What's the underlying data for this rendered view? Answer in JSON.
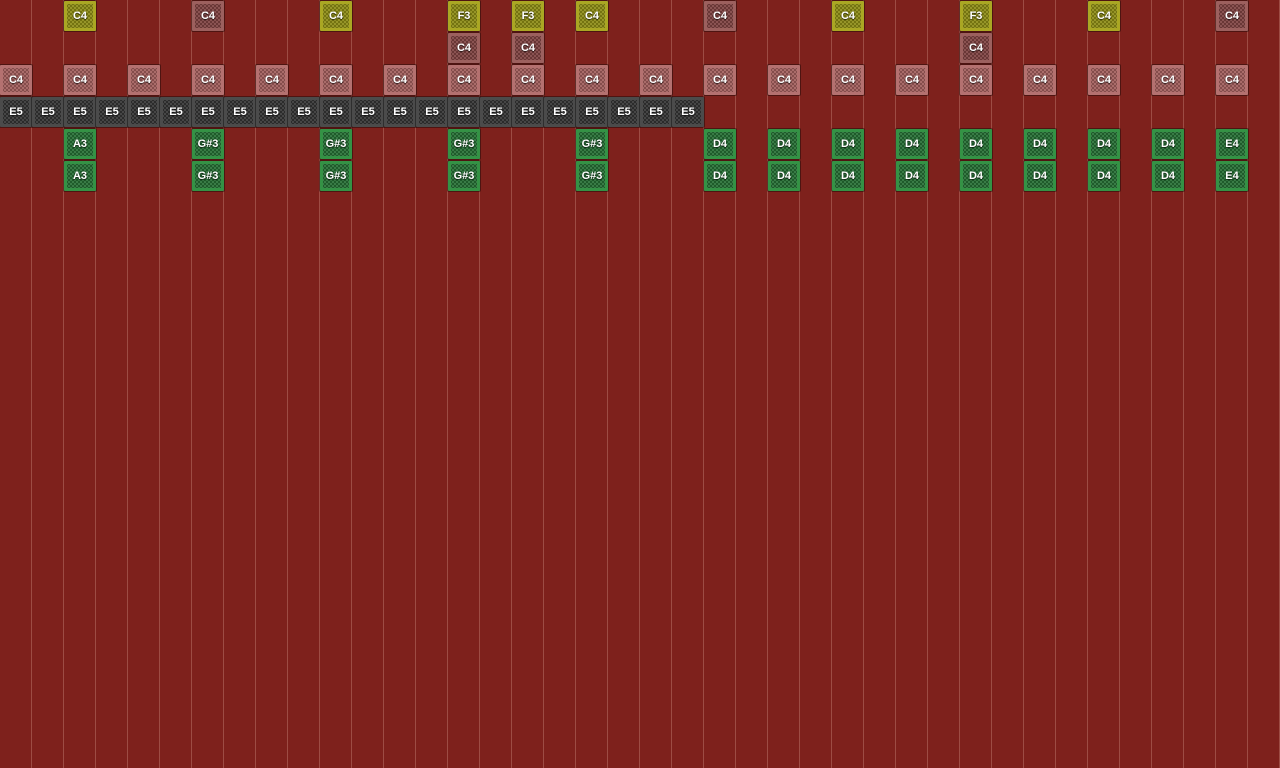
{
  "app": {
    "name": "note-block-sequencer-workspace"
  },
  "grid": {
    "columns": 40,
    "rows": 24,
    "cell_size": 32,
    "background": "#7e211c",
    "gridline_color": "#9d4c44"
  },
  "note_colors": {
    "yellow": {
      "edge": "#aaa723",
      "base": "#8c8a14"
    },
    "rose_dark": {
      "edge": "#9c605e",
      "base": "#7e4241"
    },
    "rose_light": {
      "edge": "#b47170",
      "base": "#a05d5b"
    },
    "gray": {
      "edge": "#4b4b4b",
      "base": "#343434"
    },
    "green": {
      "edge": "#349245",
      "base": "#256e34"
    }
  },
  "notes": [
    {
      "row": 0,
      "col": 2,
      "label": "C4",
      "color": "yellow"
    },
    {
      "row": 0,
      "col": 6,
      "label": "C4",
      "color": "rose_dark"
    },
    {
      "row": 0,
      "col": 10,
      "label": "C4",
      "color": "yellow"
    },
    {
      "row": 0,
      "col": 14,
      "label": "F3",
      "color": "yellow"
    },
    {
      "row": 0,
      "col": 16,
      "label": "F3",
      "color": "yellow"
    },
    {
      "row": 0,
      "col": 18,
      "label": "C4",
      "color": "yellow"
    },
    {
      "row": 0,
      "col": 22,
      "label": "C4",
      "color": "rose_dark"
    },
    {
      "row": 0,
      "col": 26,
      "label": "C4",
      "color": "yellow"
    },
    {
      "row": 0,
      "col": 30,
      "label": "F3",
      "color": "yellow"
    },
    {
      "row": 0,
      "col": 34,
      "label": "C4",
      "color": "yellow"
    },
    {
      "row": 0,
      "col": 38,
      "label": "C4",
      "color": "rose_dark"
    },
    {
      "row": 1,
      "col": 14,
      "label": "C4",
      "color": "rose_dark"
    },
    {
      "row": 1,
      "col": 16,
      "label": "C4",
      "color": "rose_dark"
    },
    {
      "row": 1,
      "col": 30,
      "label": "C4",
      "color": "rose_dark"
    },
    {
      "row": 2,
      "col": 0,
      "label": "C4",
      "color": "rose_light"
    },
    {
      "row": 2,
      "col": 2,
      "label": "C4",
      "color": "rose_light"
    },
    {
      "row": 2,
      "col": 4,
      "label": "C4",
      "color": "rose_light"
    },
    {
      "row": 2,
      "col": 6,
      "label": "C4",
      "color": "rose_light"
    },
    {
      "row": 2,
      "col": 8,
      "label": "C4",
      "color": "rose_light"
    },
    {
      "row": 2,
      "col": 10,
      "label": "C4",
      "color": "rose_light"
    },
    {
      "row": 2,
      "col": 12,
      "label": "C4",
      "color": "rose_light"
    },
    {
      "row": 2,
      "col": 14,
      "label": "C4",
      "color": "rose_light"
    },
    {
      "row": 2,
      "col": 16,
      "label": "C4",
      "color": "rose_light"
    },
    {
      "row": 2,
      "col": 18,
      "label": "C4",
      "color": "rose_light"
    },
    {
      "row": 2,
      "col": 20,
      "label": "C4",
      "color": "rose_light"
    },
    {
      "row": 2,
      "col": 22,
      "label": "C4",
      "color": "rose_light"
    },
    {
      "row": 2,
      "col": 24,
      "label": "C4",
      "color": "rose_light"
    },
    {
      "row": 2,
      "col": 26,
      "label": "C4",
      "color": "rose_light"
    },
    {
      "row": 2,
      "col": 28,
      "label": "C4",
      "color": "rose_light"
    },
    {
      "row": 2,
      "col": 30,
      "label": "C4",
      "color": "rose_light"
    },
    {
      "row": 2,
      "col": 32,
      "label": "C4",
      "color": "rose_light"
    },
    {
      "row": 2,
      "col": 34,
      "label": "C4",
      "color": "rose_light"
    },
    {
      "row": 2,
      "col": 36,
      "label": "C4",
      "color": "rose_light"
    },
    {
      "row": 2,
      "col": 38,
      "label": "C4",
      "color": "rose_light"
    },
    {
      "row": 3,
      "col": 0,
      "label": "E5",
      "color": "gray"
    },
    {
      "row": 3,
      "col": 1,
      "label": "E5",
      "color": "gray"
    },
    {
      "row": 3,
      "col": 2,
      "label": "E5",
      "color": "gray"
    },
    {
      "row": 3,
      "col": 3,
      "label": "E5",
      "color": "gray"
    },
    {
      "row": 3,
      "col": 4,
      "label": "E5",
      "color": "gray"
    },
    {
      "row": 3,
      "col": 5,
      "label": "E5",
      "color": "gray"
    },
    {
      "row": 3,
      "col": 6,
      "label": "E5",
      "color": "gray"
    },
    {
      "row": 3,
      "col": 7,
      "label": "E5",
      "color": "gray"
    },
    {
      "row": 3,
      "col": 8,
      "label": "E5",
      "color": "gray"
    },
    {
      "row": 3,
      "col": 9,
      "label": "E5",
      "color": "gray"
    },
    {
      "row": 3,
      "col": 10,
      "label": "E5",
      "color": "gray"
    },
    {
      "row": 3,
      "col": 11,
      "label": "E5",
      "color": "gray"
    },
    {
      "row": 3,
      "col": 12,
      "label": "E5",
      "color": "gray"
    },
    {
      "row": 3,
      "col": 13,
      "label": "E5",
      "color": "gray"
    },
    {
      "row": 3,
      "col": 14,
      "label": "E5",
      "color": "gray"
    },
    {
      "row": 3,
      "col": 15,
      "label": "E5",
      "color": "gray"
    },
    {
      "row": 3,
      "col": 16,
      "label": "E5",
      "color": "gray"
    },
    {
      "row": 3,
      "col": 17,
      "label": "E5",
      "color": "gray"
    },
    {
      "row": 3,
      "col": 18,
      "label": "E5",
      "color": "gray"
    },
    {
      "row": 3,
      "col": 19,
      "label": "E5",
      "color": "gray"
    },
    {
      "row": 3,
      "col": 20,
      "label": "E5",
      "color": "gray"
    },
    {
      "row": 3,
      "col": 21,
      "label": "E5",
      "color": "gray"
    },
    {
      "row": 4,
      "col": 2,
      "label": "A3",
      "color": "green"
    },
    {
      "row": 4,
      "col": 6,
      "label": "G#3",
      "color": "green"
    },
    {
      "row": 4,
      "col": 10,
      "label": "G#3",
      "color": "green"
    },
    {
      "row": 4,
      "col": 14,
      "label": "G#3",
      "color": "green"
    },
    {
      "row": 4,
      "col": 18,
      "label": "G#3",
      "color": "green"
    },
    {
      "row": 4,
      "col": 22,
      "label": "D4",
      "color": "green"
    },
    {
      "row": 4,
      "col": 24,
      "label": "D4",
      "color": "green"
    },
    {
      "row": 4,
      "col": 26,
      "label": "D4",
      "color": "green"
    },
    {
      "row": 4,
      "col": 28,
      "label": "D4",
      "color": "green"
    },
    {
      "row": 4,
      "col": 30,
      "label": "D4",
      "color": "green"
    },
    {
      "row": 4,
      "col": 32,
      "label": "D4",
      "color": "green"
    },
    {
      "row": 4,
      "col": 34,
      "label": "D4",
      "color": "green"
    },
    {
      "row": 4,
      "col": 36,
      "label": "D4",
      "color": "green"
    },
    {
      "row": 4,
      "col": 38,
      "label": "E4",
      "color": "green"
    },
    {
      "row": 5,
      "col": 2,
      "label": "A3",
      "color": "green"
    },
    {
      "row": 5,
      "col": 6,
      "label": "G#3",
      "color": "green"
    },
    {
      "row": 5,
      "col": 10,
      "label": "G#3",
      "color": "green"
    },
    {
      "row": 5,
      "col": 14,
      "label": "G#3",
      "color": "green"
    },
    {
      "row": 5,
      "col": 18,
      "label": "G#3",
      "color": "green"
    },
    {
      "row": 5,
      "col": 22,
      "label": "D4",
      "color": "green"
    },
    {
      "row": 5,
      "col": 24,
      "label": "D4",
      "color": "green"
    },
    {
      "row": 5,
      "col": 26,
      "label": "D4",
      "color": "green"
    },
    {
      "row": 5,
      "col": 28,
      "label": "D4",
      "color": "green"
    },
    {
      "row": 5,
      "col": 30,
      "label": "D4",
      "color": "green"
    },
    {
      "row": 5,
      "col": 32,
      "label": "D4",
      "color": "green"
    },
    {
      "row": 5,
      "col": 34,
      "label": "D4",
      "color": "green"
    },
    {
      "row": 5,
      "col": 36,
      "label": "D4",
      "color": "green"
    },
    {
      "row": 5,
      "col": 38,
      "label": "E4",
      "color": "green"
    }
  ]
}
